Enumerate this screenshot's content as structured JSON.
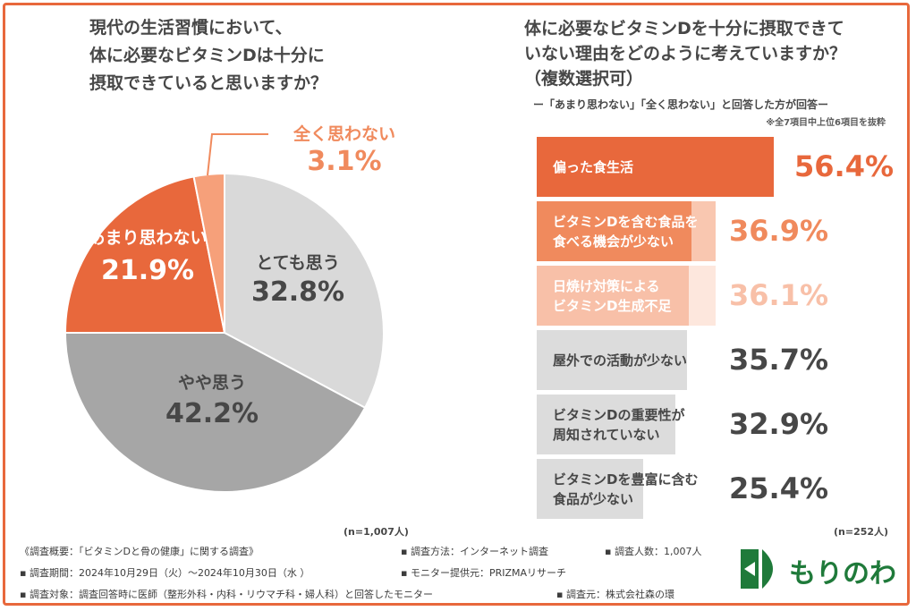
{
  "left_question": {
    "lines": [
      "現代の生活習慣において、",
      "体に必要なビタミンDは十分に",
      "摂取できていると思いますか？"
    ]
  },
  "right_question": {
    "lines": [
      "体に必要なビタミンDを十分に摂取できて",
      "いない理由をどのように考えていますか？",
      "（複数選択可）"
    ],
    "subtitle": "ー「あまり思わない」「全く思わない」と回答した方が回答ー",
    "note": "※全7項目中上位6項目を抜粋"
  },
  "chart_data": [
    {
      "type": "pie",
      "slices": [
        {
          "label": "とても思う",
          "value": 32.8,
          "display": "32.8%",
          "color": "#d9d9d9",
          "text_color": "#474747"
        },
        {
          "label": "やや思う",
          "value": 42.2,
          "display": "42.2%",
          "color": "#a6a6a6",
          "text_color": "#474747"
        },
        {
          "label": "あまり思わない",
          "value": 21.9,
          "display": "21.9%",
          "color": "#e8683c",
          "text_color": "#ffffff"
        },
        {
          "label": "全く思わない",
          "value": 3.1,
          "display": "3.1%",
          "color": "#f6a07a",
          "text_color": "#f08a5d"
        }
      ],
      "sample": "(n=1,007人)"
    },
    {
      "type": "bar",
      "orientation": "horizontal",
      "categories": [
        [
          "偏った食生活"
        ],
        [
          "ビタミンDを含む食品を",
          "食べる機会が少ない"
        ],
        [
          "日焼け対策による",
          "ビタミンD生成不足"
        ],
        [
          "屋外での活動が少ない"
        ],
        [
          "ビタミンDの重要性が",
          "周知されていない"
        ],
        [
          "ビタミンDを豊富に含む",
          "食品が少ない"
        ]
      ],
      "values": [
        56.4,
        36.9,
        36.1,
        35.7,
        32.9,
        25.4
      ],
      "value_labels": [
        "56.4%",
        "36.9%",
        "36.1%",
        "35.7%",
        "32.9%",
        "25.4%"
      ],
      "bar_colors": [
        "#e8683c",
        "#f08a5d",
        "#f8c0a8",
        "#dcdcdc",
        "#dcdcdc",
        "#dcdcdc"
      ],
      "track_colors": [
        "#ffffff",
        "#f9c7b0",
        "#fde7dd",
        "#ffffff",
        "#ffffff",
        "#ffffff"
      ],
      "label_colors": [
        "#ffffff",
        "#ffffff",
        "#ffffff",
        "#474747",
        "#474747",
        "#474747"
      ],
      "value_colors": [
        "#e8683c",
        "#f08a5d",
        "#f8c0a8",
        "#474747",
        "#474747",
        "#474747"
      ],
      "xlim": [
        0,
        80
      ],
      "sample": "(n=252人)"
    }
  ],
  "footer": {
    "overview": "《調査概要：「ビタミンDと骨の健康」に関する調査》",
    "method": "▪ 調査方法：インターネット調査",
    "people": "▪ 調査人数：1,007人",
    "period": "▪ 調査期間：2024年10月29日（火）～2024年10月30日（水 ）",
    "provider": "▪ モニター提供元：PRIZMAリサーチ",
    "target": "▪ 調査対象：調査回答時に医師（整形外科・内科・リウマチ科・婦人科）と回答したモニター",
    "sponsor": "▪ 調査元：株式会社森の環"
  },
  "logo": {
    "text": "もりのわ",
    "color": "#1f7a3a"
  }
}
